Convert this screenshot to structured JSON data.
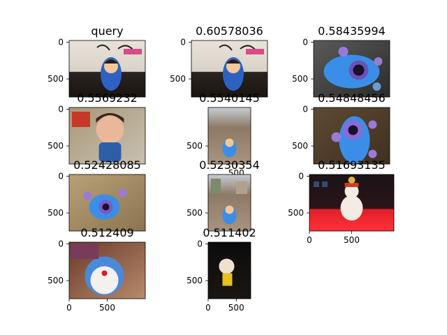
{
  "chart_data": {
    "type": "image_grid",
    "grid": {
      "rows": 4,
      "cols": 3
    },
    "panels": [
      {
        "title": "query",
        "yticks": [
          "0",
          "500"
        ],
        "xticks": []
      },
      {
        "title": "0.60578036",
        "yticks": [
          "0",
          "500"
        ],
        "xticks": []
      },
      {
        "title": "0.58435994",
        "yticks": [
          "0",
          "500"
        ],
        "xticks": []
      },
      {
        "title": "0.5569232",
        "yticks": [
          "0",
          "500"
        ],
        "xticks": []
      },
      {
        "title": "0.5540145",
        "yticks": [
          "500"
        ],
        "xticks": [
          "500"
        ]
      },
      {
        "title": "0.54848456",
        "yticks": [
          "0",
          "500"
        ],
        "xticks": []
      },
      {
        "title": "0.52428085",
        "yticks": [
          "0",
          "500"
        ],
        "xticks": []
      },
      {
        "title": "0.5230354",
        "yticks": [
          "500"
        ],
        "xticks": []
      },
      {
        "title": "0.51693135",
        "yticks": [
          "0",
          "500"
        ],
        "xticks": [
          "0",
          "500"
        ]
      },
      {
        "title": "0.512409",
        "yticks": [
          "0",
          "500"
        ],
        "xticks": [
          "0",
          "500"
        ]
      },
      {
        "title": "0.511402",
        "yticks": [
          "0",
          "500"
        ],
        "xticks": [
          "0",
          "500"
        ]
      }
    ]
  }
}
